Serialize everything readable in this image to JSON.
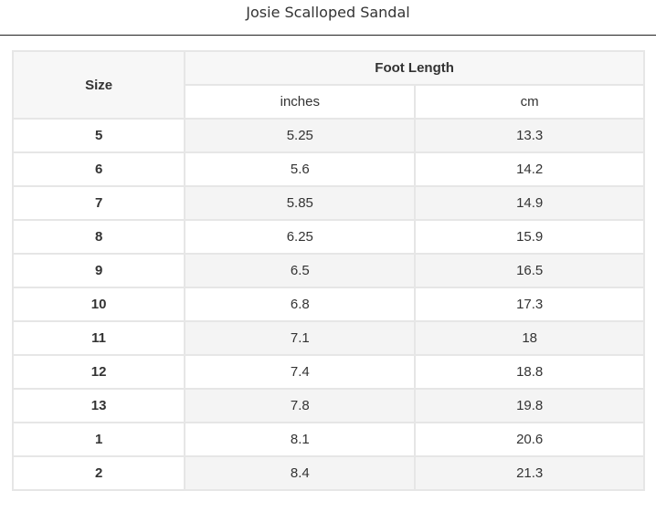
{
  "title": "Josie Scalloped Sandal",
  "table": {
    "size_header": "Size",
    "group_header": "Foot Length",
    "sub_headers": [
      "inches",
      "cm"
    ],
    "rows": [
      [
        "5",
        "5.25",
        "13.3"
      ],
      [
        "6",
        "5.6",
        "14.2"
      ],
      [
        "7",
        "5.85",
        "14.9"
      ],
      [
        "8",
        "6.25",
        "15.9"
      ],
      [
        "9",
        "6.5",
        "16.5"
      ],
      [
        "10",
        "6.8",
        "17.3"
      ],
      [
        "11",
        "7.1",
        "18"
      ],
      [
        "12",
        "7.4",
        "18.8"
      ],
      [
        "13",
        "7.8",
        "19.8"
      ],
      [
        "1",
        "8.1",
        "20.6"
      ],
      [
        "2",
        "8.4",
        "21.3"
      ]
    ]
  }
}
